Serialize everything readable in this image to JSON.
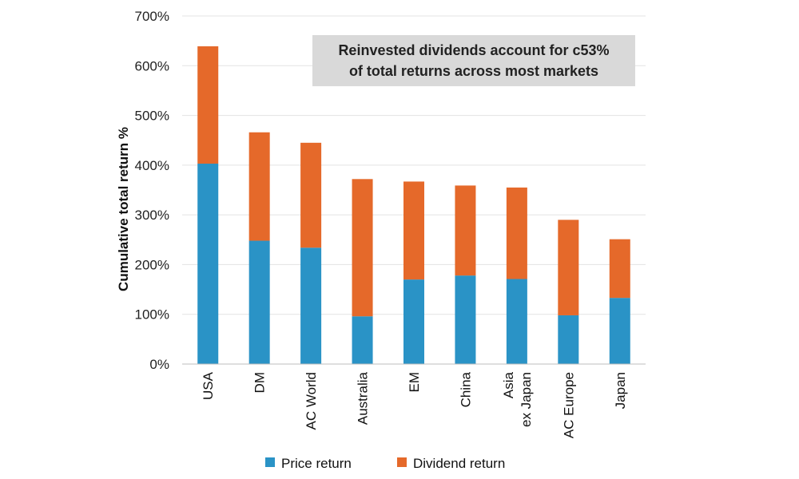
{
  "chart_data": {
    "type": "bar",
    "stacked": true,
    "categories": [
      [
        "USA"
      ],
      [
        "DM"
      ],
      [
        "AC World"
      ],
      [
        "Australia"
      ],
      [
        "EM"
      ],
      [
        "China"
      ],
      [
        "Asia",
        "ex Japan"
      ],
      [
        "AC Europe"
      ],
      [
        "Japan"
      ]
    ],
    "series": [
      {
        "name": "Price return",
        "color": "#2a93c6",
        "values": [
          403,
          248,
          234,
          96,
          170,
          178,
          171,
          98,
          133
        ]
      },
      {
        "name": "Dividend return",
        "color": "#e5692a",
        "values": [
          236,
          218,
          211,
          276,
          197,
          181,
          184,
          192,
          118
        ]
      }
    ],
    "ylabel": "Cumulative total return %",
    "ylim": [
      0,
      700
    ],
    "yticks": [
      "0%",
      "100%",
      "200%",
      "300%",
      "400%",
      "500%",
      "600%",
      "700%"
    ],
    "ytick_values": [
      0,
      100,
      200,
      300,
      400,
      500,
      600,
      700
    ],
    "grid": true,
    "legend_position": "bottom",
    "annotation": [
      "Reinvested dividends account for c53%",
      "of total returns across most markets"
    ],
    "colors": {
      "grid": "#e3e3e3",
      "axis": "#bdbdbd",
      "annotation_bg": "#d9d9d9"
    }
  }
}
